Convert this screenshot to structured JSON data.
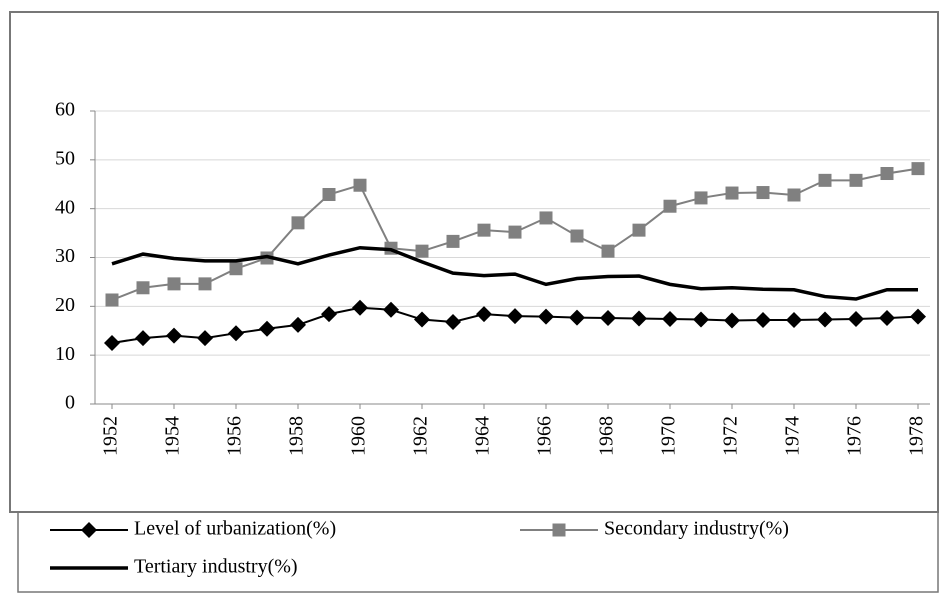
{
  "chart_data": {
    "type": "line",
    "x": [
      1952,
      1953,
      1954,
      1955,
      1956,
      1957,
      1958,
      1959,
      1960,
      1961,
      1962,
      1963,
      1964,
      1965,
      1966,
      1967,
      1968,
      1969,
      1970,
      1971,
      1972,
      1973,
      1974,
      1975,
      1976,
      1977,
      1978
    ],
    "xlim": [
      1952,
      1978
    ],
    "xticks": [
      1952,
      1954,
      1956,
      1958,
      1960,
      1962,
      1964,
      1966,
      1968,
      1970,
      1972,
      1974,
      1976,
      1978
    ],
    "ylim": [
      0,
      60
    ],
    "yticks": [
      0,
      10,
      20,
      30,
      40,
      50,
      60
    ],
    "grid": true,
    "legend": "bottom",
    "series": [
      {
        "name": "Level of urbanization(%)",
        "color": "#000000",
        "marker": "diamond",
        "values": [
          12.5,
          13.5,
          14,
          13.5,
          14.5,
          15.4,
          16.2,
          18.4,
          19.7,
          19.3,
          17.3,
          16.8,
          18.4,
          18,
          17.9,
          17.7,
          17.6,
          17.5,
          17.4,
          17.3,
          17.1,
          17.2,
          17.2,
          17.3,
          17.4,
          17.6,
          17.9
        ]
      },
      {
        "name": "Secondary industry(%)",
        "color": "#808080",
        "marker": "square",
        "values": [
          21.3,
          23.8,
          24.6,
          24.6,
          27.7,
          29.9,
          37.1,
          42.9,
          44.8,
          31.9,
          31.3,
          33.3,
          35.6,
          35.2,
          38.1,
          34.4,
          31.3,
          35.6,
          40.5,
          42.2,
          43.2,
          43.3,
          42.8,
          45.8,
          45.8,
          47.2,
          48.2
        ]
      },
      {
        "name": "Tertiary industry(%)",
        "color": "#000000",
        "marker": "none",
        "values": [
          28.7,
          30.7,
          29.8,
          29.3,
          29.3,
          30.2,
          28.7,
          30.5,
          32,
          31.6,
          29.1,
          26.8,
          26.3,
          26.6,
          24.5,
          25.7,
          26.1,
          26.2,
          24.5,
          23.6,
          23.8,
          23.5,
          23.4,
          22,
          21.5,
          23.4,
          23.4
        ]
      }
    ]
  }
}
